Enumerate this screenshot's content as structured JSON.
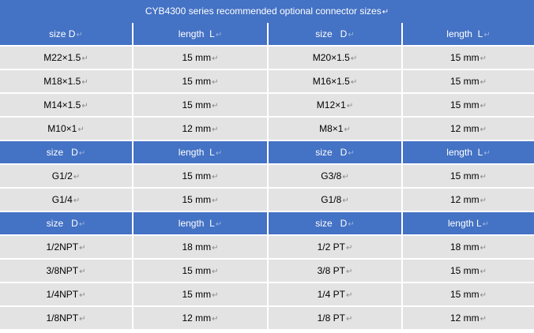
{
  "title": "CYB4300 series recommended optional connector sizes",
  "paragraph_mark": "↵",
  "sections": [
    {
      "headers": [
        "size D",
        "length  L",
        "size   D",
        "length  L"
      ],
      "rows": [
        [
          "M22×1.5",
          "15 mm",
          "M20×1.5",
          "15 mm"
        ],
        [
          "M18×1.5",
          "15 mm",
          "M16×1.5",
          "15 mm"
        ],
        [
          "M14×1.5",
          "15 mm",
          "M12×1",
          "15 mm"
        ],
        [
          "M10×1",
          "12 mm",
          "M8×1",
          "12 mm"
        ]
      ]
    },
    {
      "headers": [
        "size   D",
        "length  L",
        "size   D",
        "length  L"
      ],
      "rows": [
        [
          "G1/2",
          "15 mm",
          "G3/8",
          "15 mm"
        ],
        [
          "G1/4",
          "15 mm",
          "G1/8",
          "12 mm"
        ]
      ]
    },
    {
      "headers": [
        "size   D",
        "length  L",
        "size   D",
        "length L"
      ],
      "rows": [
        [
          "1/2NPT",
          "18 mm",
          "1/2 PT",
          "18 mm"
        ],
        [
          "3/8NPT",
          "15 mm",
          "3/8 PT",
          "15 mm"
        ],
        [
          "1/4NPT",
          "15 mm",
          "1/4 PT",
          "15 mm"
        ],
        [
          "1/8NPT",
          "12 mm",
          "1/8 PT",
          "12 mm"
        ]
      ]
    }
  ]
}
